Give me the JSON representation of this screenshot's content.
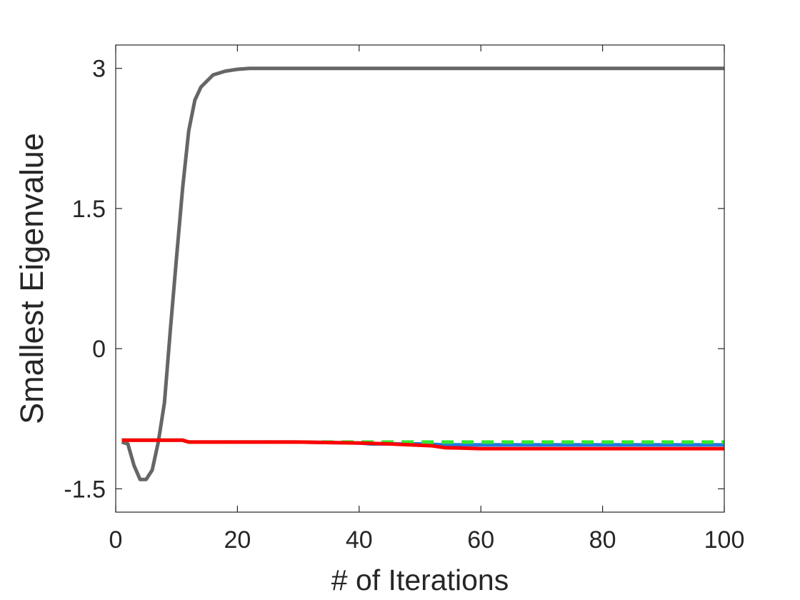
{
  "chart_data": {
    "type": "line",
    "title": "",
    "xlabel": "# of Iterations",
    "ylabel": "Smallest Eigenvalue",
    "xlim": [
      0,
      100
    ],
    "ylim": [
      -1.75,
      3.25
    ],
    "xticks": [
      0,
      20,
      40,
      60,
      80,
      100
    ],
    "xtick_labels": [
      "0",
      "20",
      "40",
      "60",
      "80",
      "100"
    ],
    "yticks": [
      -1.5,
      0,
      1.5,
      3
    ],
    "ytick_labels": [
      "-1.5",
      "0",
      "1.5",
      "3"
    ],
    "grid": false,
    "series": [
      {
        "color": "#666666",
        "style": "solid",
        "x": [
          1,
          2,
          3,
          4,
          5,
          6,
          7,
          8,
          9,
          10,
          11,
          12,
          13,
          14,
          16,
          18,
          20,
          22,
          30,
          40,
          60,
          80,
          100
        ],
        "y": [
          -1.0,
          -1.02,
          -1.25,
          -1.4,
          -1.4,
          -1.3,
          -1.0,
          -0.58,
          0.22,
          0.98,
          1.72,
          2.33,
          2.66,
          2.8,
          2.93,
          2.97,
          2.99,
          3.0,
          3.0,
          3.0,
          3.0,
          3.0,
          3.0
        ]
      },
      {
        "color": "#1f7be0",
        "style": "solid",
        "x": [
          1,
          11,
          12,
          20,
          30,
          40,
          42,
          50,
          54,
          60,
          70,
          80,
          100
        ],
        "y": [
          -0.98,
          -0.98,
          -1.0,
          -1.0,
          -1.0,
          -1.01,
          -1.02,
          -1.02,
          -1.03,
          -1.03,
          -1.03,
          -1.03,
          -1.03
        ]
      },
      {
        "color": "#33e633",
        "style": "dashed",
        "x": [
          1,
          11,
          12,
          20,
          30,
          40,
          50,
          60,
          80,
          100
        ],
        "y": [
          -0.98,
          -0.98,
          -1.0,
          -1.0,
          -1.0,
          -1.0,
          -1.0,
          -1.0,
          -1.0,
          -1.0
        ]
      },
      {
        "color": "#ff0000",
        "style": "solid",
        "x": [
          1,
          11,
          12,
          20,
          30,
          40,
          45,
          52,
          54,
          60,
          67,
          80,
          100
        ],
        "y": [
          -0.98,
          -0.98,
          -1.0,
          -1.0,
          -1.0,
          -1.01,
          -1.02,
          -1.04,
          -1.06,
          -1.07,
          -1.07,
          -1.07,
          -1.07
        ]
      }
    ]
  }
}
